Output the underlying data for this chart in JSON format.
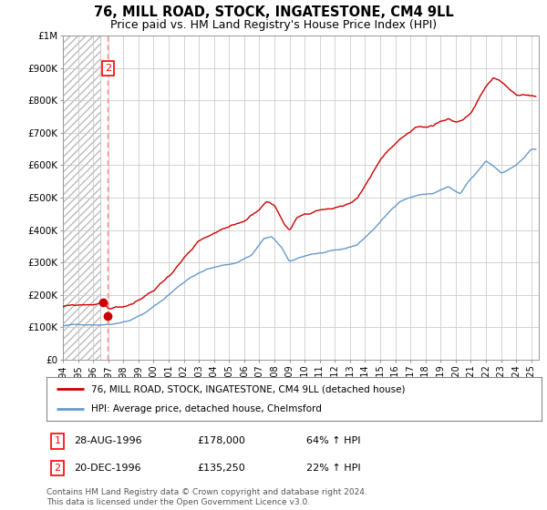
{
  "title": "76, MILL ROAD, STOCK, INGATESTONE, CM4 9LL",
  "subtitle": "Price paid vs. HM Land Registry's House Price Index (HPI)",
  "title_fontsize": 10.5,
  "subtitle_fontsize": 9,
  "xlim_start": 1994.0,
  "xlim_end": 2025.5,
  "ylim_min": 0,
  "ylim_max": 1000000,
  "yticks": [
    0,
    100000,
    200000,
    300000,
    400000,
    500000,
    600000,
    700000,
    800000,
    900000,
    1000000
  ],
  "ytick_labels": [
    "£0",
    "£100K",
    "£200K",
    "£300K",
    "£400K",
    "£500K",
    "£600K",
    "£700K",
    "£800K",
    "£900K",
    "£1M"
  ],
  "price_paid_color": "#cc0000",
  "hpi_color": "#6699cc",
  "sale1_date_num": 1996.64,
  "sale1_price": 178000,
  "sale2_date_num": 1996.97,
  "sale2_price": 135250,
  "legend_label1": "76, MILL ROAD, STOCK, INGATESTONE, CM4 9LL (detached house)",
  "legend_label2": "HPI: Average price, detached house, Chelmsford",
  "footer_text": "Contains HM Land Registry data © Crown copyright and database right 2024.\nThis data is licensed under the Open Government Licence v3.0.",
  "grid_color": "#cccccc",
  "dashed_line_color": "#ff8888",
  "hatch_color": "#cccccc"
}
